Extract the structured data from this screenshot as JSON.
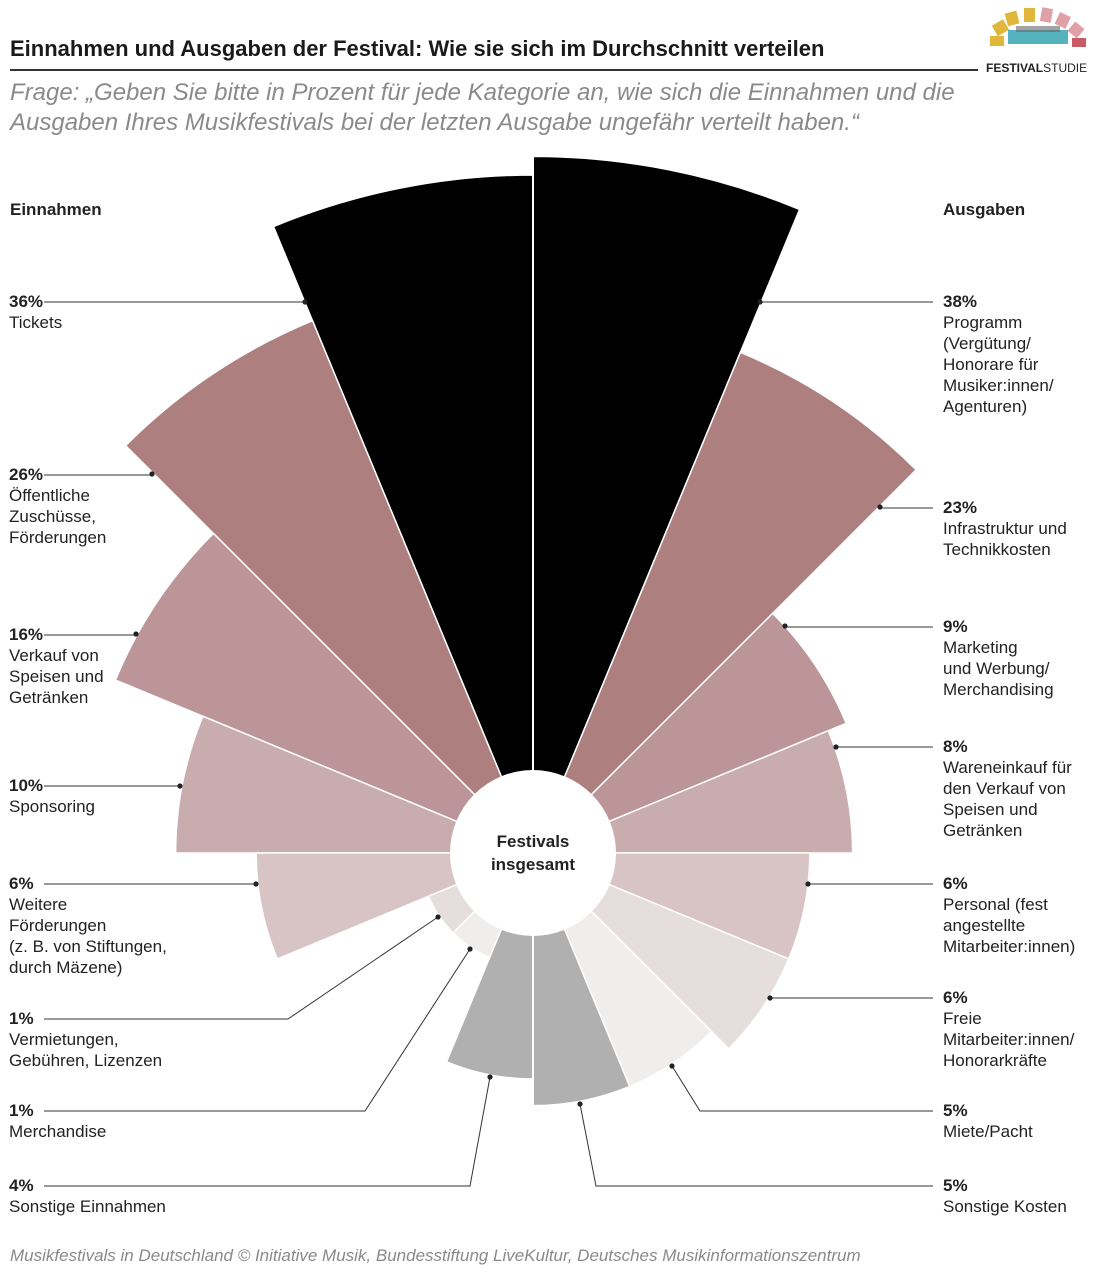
{
  "title": "Einnahmen und Ausgaben der Festival: Wie sie sich im Durchschnitt verteilen",
  "subtitle": "Frage: „Geben Sie bitte in Prozent für jede Kategorie an, wie sich die Einnahmen und die Ausgaben Ihres Musikfestivals bei der letzten Ausgabe ungefähr verteilt haben.“",
  "logo": {
    "bold": "FESTIVAL",
    "light": "STUDIE"
  },
  "footer": "Musikfestivals in Deutschland © Initiative Musik, Bundesstiftung LiveKultur, Deutsches Musikinformationszentrum",
  "chart_data": {
    "type": "polar-area",
    "center_label": "Festivals insgesamt",
    "unit": "%",
    "series": [
      {
        "name": "Einnahmen",
        "side": "left",
        "items": [
          {
            "label": "Tickets",
            "value": 36,
            "color": "#000000"
          },
          {
            "label": "Öffentliche\nZuschüsse,\nFörderungen",
            "value": 26,
            "color": "#ad7f7f"
          },
          {
            "label": "Verkauf von\nSpeisen und\nGetränken",
            "value": 16,
            "color": "#bc9599"
          },
          {
            "label": "Sponsoring",
            "value": 10,
            "color": "#c9acae"
          },
          {
            "label": "Weitere\nFörderungen\n(z. B. von Stiftungen,\ndurch Mäzene)",
            "value": 6,
            "color": "#d9c4c5"
          },
          {
            "label": "Vermietungen,\nGebühren, Lizenzen",
            "value": 1,
            "color": "#e6dddd"
          },
          {
            "label": "Merchandise",
            "value": 1,
            "color": "#efeeec"
          },
          {
            "label": "Sonstige Einnahmen",
            "value": 4,
            "color": "#b0b0b0"
          }
        ]
      },
      {
        "name": "Ausgaben",
        "side": "right",
        "items": [
          {
            "label": "Programm\n(Vergütung/\nHonorare für\nMusiker:innen/\nAgenturen)",
            "value": 38,
            "color": "#000000"
          },
          {
            "label": "Infrastruktur und\nTechnikkosten",
            "value": 23,
            "color": "#ad7f7f"
          },
          {
            "label": "Marketing\nund Werbung/\nMerchandising",
            "value": 9,
            "color": "#bc9599"
          },
          {
            "label": "Wareneinkauf für\nden Verkauf von\nSpeisen und\nGetränken",
            "value": 8,
            "color": "#c9acae"
          },
          {
            "label": "Personal (fest\nangestellte\nMitarbeiter:innen)",
            "value": 6,
            "color": "#d9c4c5"
          },
          {
            "label": "Freie\nMitarbeiter:innen/\nHonorarkräfte",
            "value": 6,
            "color": "#e6dddd"
          },
          {
            "label": "Miete/Pacht",
            "value": 5,
            "color": "#efeeec"
          },
          {
            "label": "Sonstige Kosten",
            "value": 5,
            "color": "#b0b0b0"
          }
        ]
      }
    ]
  }
}
